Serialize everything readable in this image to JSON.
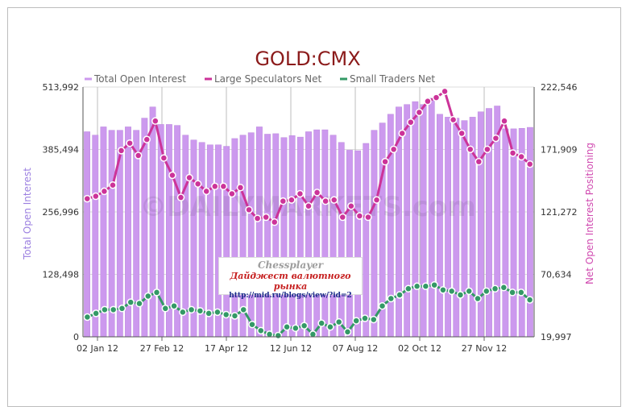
{
  "chart_data": {
    "type": "bar",
    "title": "GOLD:CMX",
    "watermark": "©DAILYMARKETS.com",
    "ylabel_left": "Total Open Interest",
    "ylabel_right": "Net Open Interest Positioning",
    "left_axis": {
      "min": 0,
      "max": 513992,
      "ticks": [
        "0",
        "128,498",
        "256,996",
        "385,494",
        "513,992"
      ]
    },
    "right_axis": {
      "min": 19997,
      "max": 222546,
      "ticks": [
        "19,997",
        "70,634",
        "121,272",
        "171,909",
        "222,546"
      ]
    },
    "x_tick_labels": [
      "02 Jan 12",
      "27 Feb 12",
      "17 Apr 12",
      "12 Jun 12",
      "07 Aug 12",
      "02 Oct 12",
      "27 Nov 12"
    ],
    "legend": {
      "placement": "top"
    },
    "grid": true,
    "series": [
      {
        "name": "Total Open Interest",
        "kind": "bar",
        "axis": "left",
        "color": "#cc99ee",
        "values": [
          422000,
          415000,
          432000,
          425000,
          425000,
          432000,
          425000,
          450000,
          473000,
          437000,
          437000,
          435000,
          415000,
          405000,
          400000,
          395000,
          395000,
          392000,
          408000,
          415000,
          420000,
          432000,
          417000,
          418000,
          410000,
          414000,
          411000,
          422000,
          426000,
          426000,
          415000,
          400000,
          384000,
          383000,
          398000,
          425000,
          440000,
          458000,
          473000,
          478000,
          484000,
          478000,
          491000,
          458000,
          452000,
          450000,
          445000,
          452000,
          463000,
          470000,
          475000,
          428000,
          428000,
          429000,
          431000
        ]
      },
      {
        "name": "Large Speculators Net",
        "kind": "line",
        "axis": "right",
        "color": "#cc3399",
        "values": [
          132000,
          134000,
          138000,
          143000,
          171000,
          177000,
          167000,
          180000,
          195000,
          165000,
          151000,
          133000,
          149000,
          144000,
          138000,
          142000,
          142000,
          136000,
          141000,
          123000,
          116000,
          117000,
          113000,
          130000,
          131000,
          136000,
          126000,
          137000,
          130000,
          131000,
          117000,
          126000,
          118000,
          117000,
          131000,
          162000,
          172000,
          185000,
          194000,
          202000,
          211000,
          214000,
          219000,
          196000,
          185000,
          172000,
          162000,
          172000,
          181000,
          195000,
          169000,
          166000,
          160000
        ]
      },
      {
        "name": "Small Traders Net",
        "kind": "line",
        "axis": "right",
        "color": "#339966",
        "values": [
          36000,
          39000,
          42000,
          42000,
          43000,
          48000,
          47000,
          53000,
          56000,
          43000,
          45000,
          40000,
          42000,
          41000,
          39000,
          40000,
          38000,
          37000,
          42000,
          30000,
          25000,
          22000,
          21000,
          28000,
          27000,
          29000,
          22000,
          31000,
          28000,
          32000,
          24000,
          33000,
          35000,
          34000,
          45000,
          51000,
          54000,
          59000,
          61000,
          61000,
          62000,
          58000,
          57000,
          54000,
          57000,
          51000,
          57000,
          59000,
          60000,
          56000,
          56000,
          50000
        ]
      }
    ]
  },
  "badge": {
    "line1": "Chessplayer",
    "line2": "Дайджест валютного рынка",
    "line3": "http://mid.ru/blogs/view/?id=2"
  }
}
